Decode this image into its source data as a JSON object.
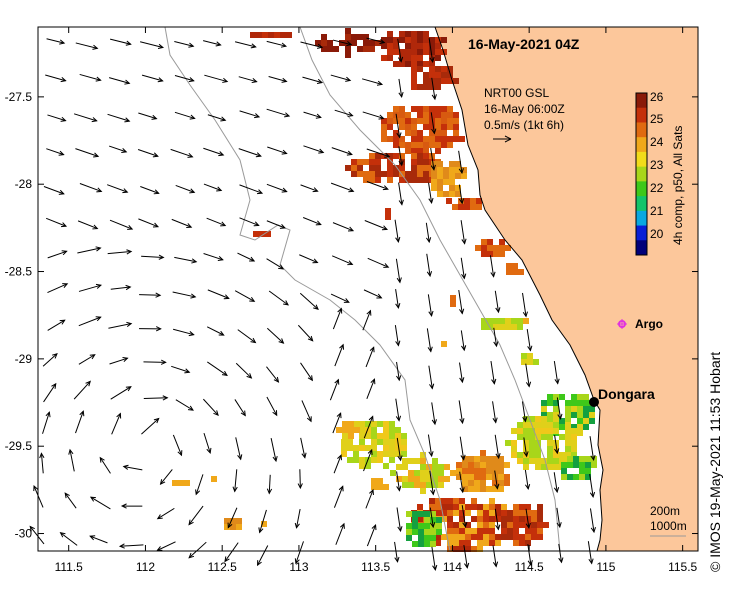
{
  "map": {
    "title": "16-May-2021 04Z",
    "region": {
      "lon_min": 111.3,
      "lon_max": 115.6,
      "lat_min": -30.1,
      "lat_max": -27.1
    },
    "x_ticks": [
      "111.5",
      "112",
      "112.5",
      "113",
      "113.5",
      "114",
      "114.5",
      "115",
      "115.5"
    ],
    "y_ticks": [
      "-27.5",
      "-28",
      "-28.5",
      "-29",
      "-29.5",
      "-30"
    ],
    "x_tick_values": [
      111.5,
      112,
      112.5,
      113,
      113.5,
      114,
      114.5,
      115,
      115.5
    ],
    "y_tick_values": [
      -27.5,
      -28,
      -28.5,
      -29,
      -29.5,
      -30
    ],
    "current_legend": {
      "line1": "NRT00 GSL",
      "line2": "16-May 06:00Z",
      "line3": "0.5m/s (1kt 6h)"
    },
    "colorbar": {
      "labels": [
        "26",
        "25",
        "24",
        "23",
        "22",
        "21",
        "20"
      ],
      "min": 20,
      "max": 26,
      "title": "4h comp, p50, All Sats",
      "colors": [
        "#00007a",
        "#0a1fd6",
        "#0aa8e0",
        "#14c46a",
        "#3ec81a",
        "#a8d61a",
        "#f2dc1a",
        "#f0a81a",
        "#e06a10",
        "#c4300a",
        "#8a1a08"
      ]
    },
    "places": [
      {
        "name": "Dongara",
        "lon": 114.93,
        "lat": -29.25
      },
      {
        "name": "Argo",
        "lon": 115.1,
        "lat": -28.82
      }
    ],
    "isobaths": {
      "line1": "200m",
      "line2": "1000m"
    },
    "credit": "© IMOS 19-May-2021 11:53 Hobart",
    "colors": {
      "land": "#fcc79b",
      "coast": "#000000",
      "isobath": "#9a9a9a",
      "argo": "#e030e0"
    }
  }
}
